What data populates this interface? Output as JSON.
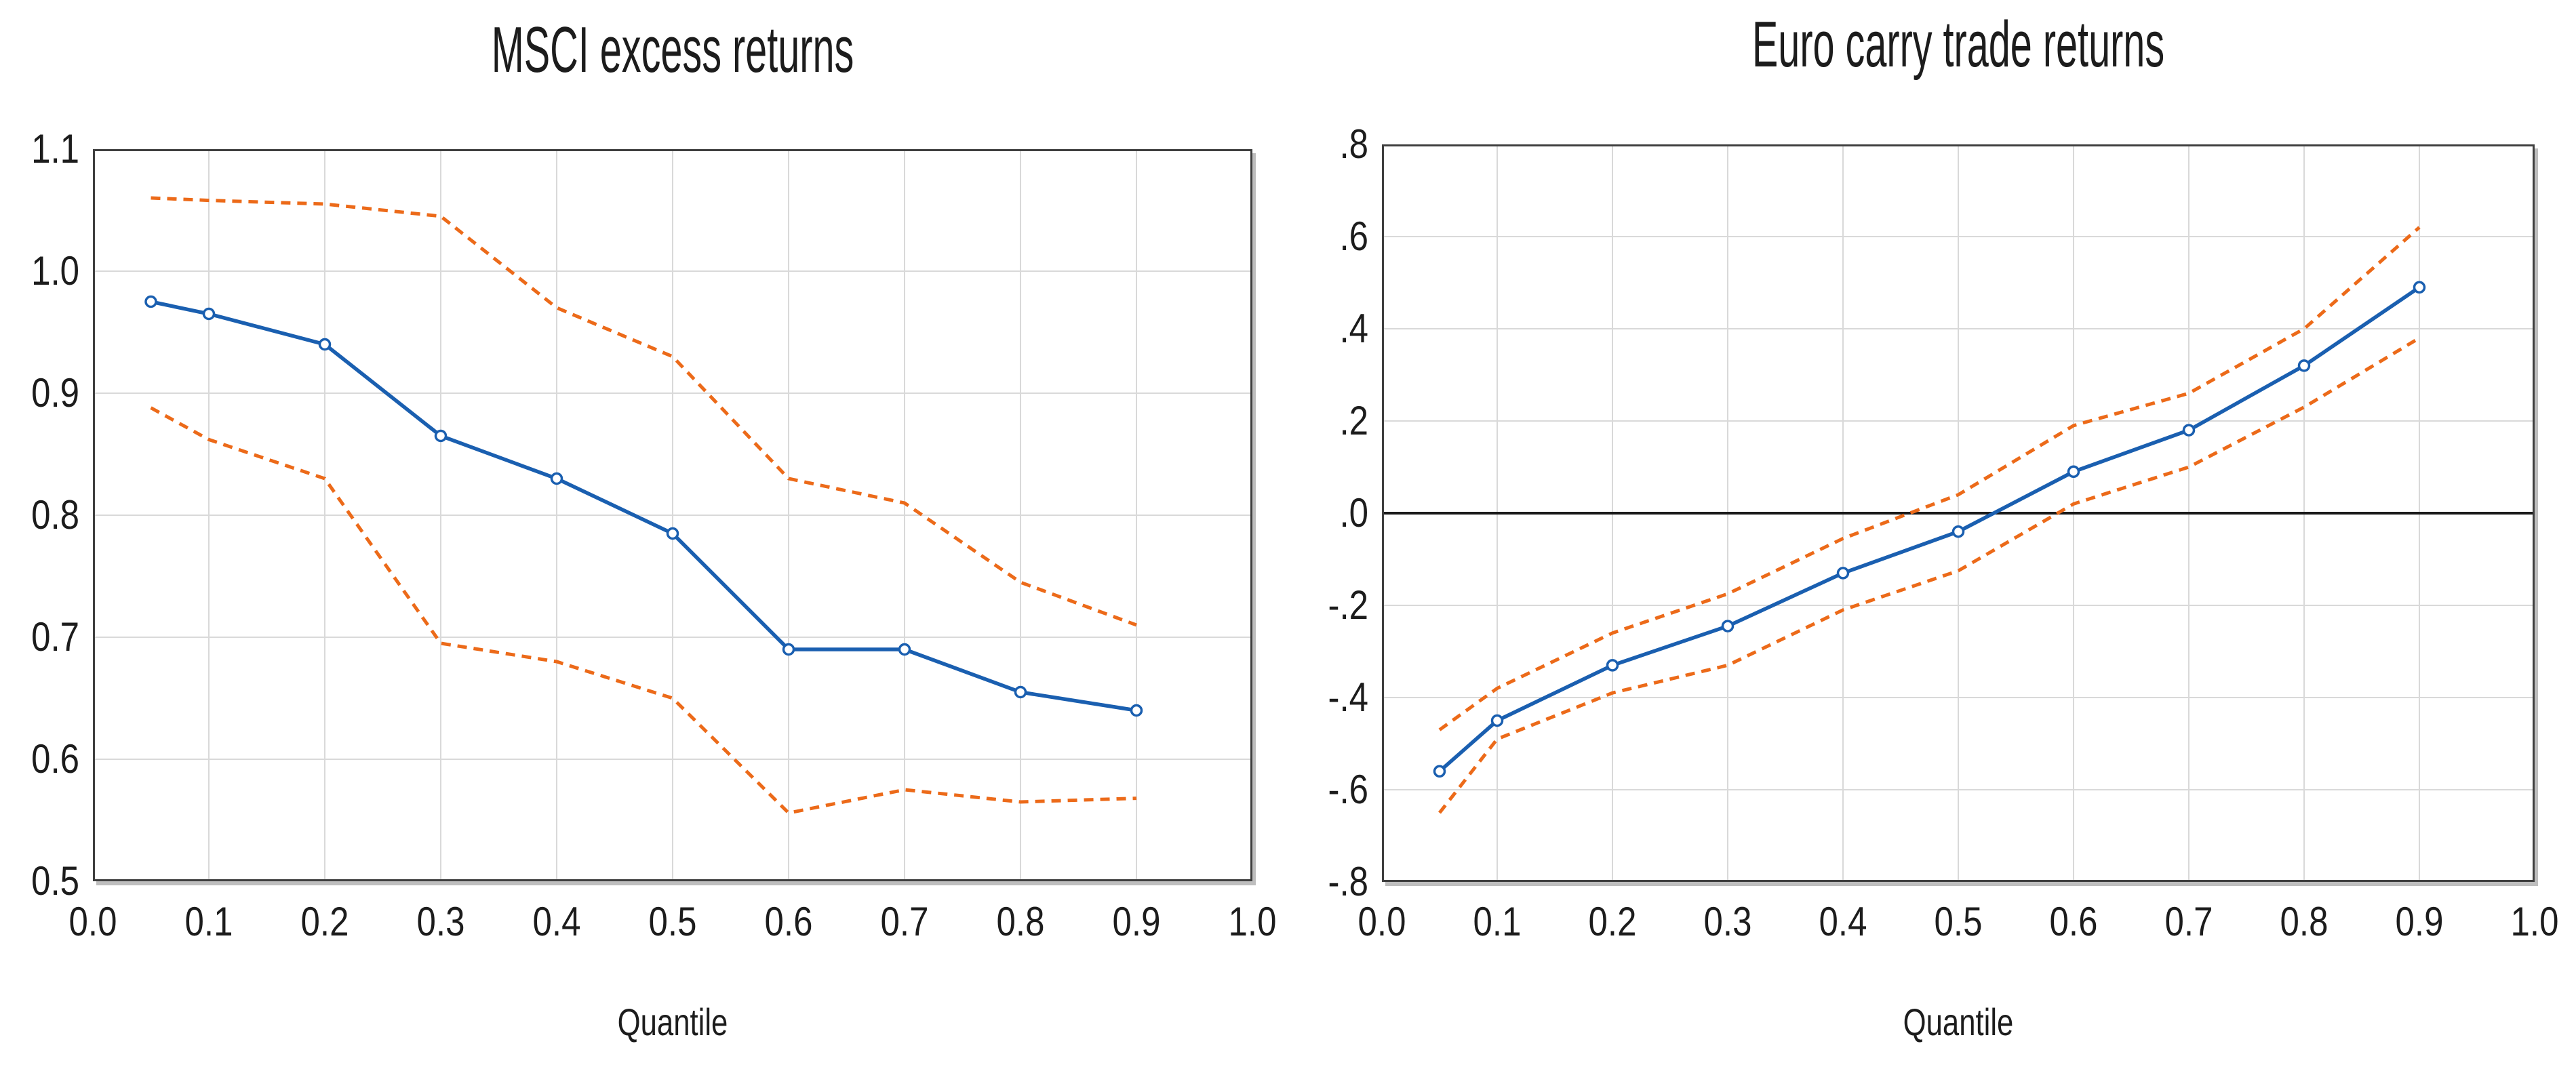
{
  "colors": {
    "blue": "#1a5fb0",
    "orange": "#ec6a19",
    "grid": "#d9d9d9",
    "border": "#3f3f3f",
    "zero_line": "#1a1a1a",
    "text": "#1c1c1c",
    "background": "#ffffff"
  },
  "chart_data": [
    {
      "type": "line",
      "title": "MSCI excess returns",
      "xlabel": "Quantile",
      "ylabel": "",
      "x": [
        0.05,
        0.1,
        0.2,
        0.3,
        0.4,
        0.5,
        0.6,
        0.7,
        0.8,
        0.9
      ],
      "series": [
        {
          "name": "upper-dashed-band",
          "color_key": "orange",
          "style": "dashed",
          "marker": "none",
          "values": [
            1.06,
            1.058,
            1.055,
            1.045,
            0.97,
            0.93,
            0.83,
            0.81,
            0.745,
            0.71
          ]
        },
        {
          "name": "lower-dashed-band",
          "color_key": "orange",
          "style": "dashed",
          "marker": "none",
          "values": [
            0.888,
            0.862,
            0.83,
            0.695,
            0.68,
            0.65,
            0.556,
            0.575,
            0.565,
            0.568
          ]
        },
        {
          "name": "quantile-estimate",
          "color_key": "blue",
          "style": "solid",
          "marker": "circle",
          "values": [
            0.975,
            0.965,
            0.94,
            0.865,
            0.83,
            0.785,
            0.69,
            0.69,
            0.655,
            0.64
          ]
        }
      ],
      "xlim": [
        0.0,
        1.0
      ],
      "ylim": [
        0.5,
        1.1
      ],
      "x_ticks": [
        "0.0",
        "0.1",
        "0.2",
        "0.3",
        "0.4",
        "0.5",
        "0.6",
        "0.7",
        "0.8",
        "0.9",
        "1.0"
      ],
      "y_ticks": [
        "1.1",
        "1.0",
        "0.9",
        "0.8",
        "0.7",
        "0.6",
        "0.5"
      ],
      "grid": true,
      "legend": "none",
      "zero_line": false
    },
    {
      "type": "line",
      "title": "Euro carry trade returns",
      "xlabel": "Quantile",
      "ylabel": "",
      "x": [
        0.05,
        0.1,
        0.2,
        0.3,
        0.4,
        0.5,
        0.6,
        0.7,
        0.8,
        0.9
      ],
      "series": [
        {
          "name": "upper-dashed-band",
          "color_key": "orange",
          "style": "dashed",
          "marker": "none",
          "values": [
            -0.47,
            -0.38,
            -0.26,
            -0.175,
            -0.055,
            0.04,
            0.19,
            0.26,
            0.4,
            0.62
          ]
        },
        {
          "name": "lower-dashed-band",
          "color_key": "orange",
          "style": "dashed",
          "marker": "none",
          "values": [
            -0.65,
            -0.49,
            -0.39,
            -0.33,
            -0.21,
            -0.125,
            0.02,
            0.1,
            0.23,
            0.38
          ]
        },
        {
          "name": "quantile-estimate",
          "color_key": "blue",
          "style": "solid",
          "marker": "circle",
          "values": [
            -0.56,
            -0.45,
            -0.33,
            -0.245,
            -0.13,
            -0.04,
            0.09,
            0.18,
            0.32,
            0.49
          ]
        }
      ],
      "xlim": [
        0.0,
        1.0
      ],
      "ylim": [
        -0.8,
        0.8
      ],
      "x_ticks": [
        "0.0",
        "0.1",
        "0.2",
        "0.3",
        "0.4",
        "0.5",
        "0.6",
        "0.7",
        "0.8",
        "0.9",
        "1.0"
      ],
      "y_ticks": [
        ".8",
        ".6",
        ".4",
        ".2",
        ".0",
        "-.2",
        "-.4",
        "-.6",
        "-.8"
      ],
      "grid": true,
      "legend": "none",
      "zero_line": true
    }
  ]
}
